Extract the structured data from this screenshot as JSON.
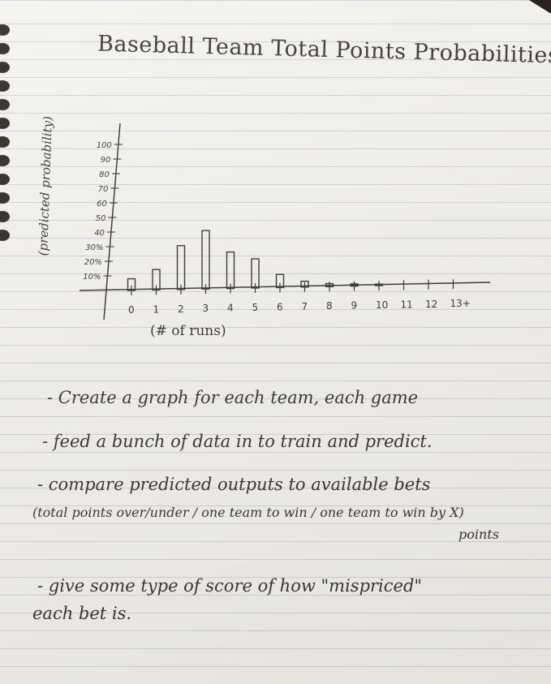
{
  "chart_data": {
    "type": "bar",
    "title": "Baseball Team Total Points Probabilities",
    "ylabel": "(predicted probability)",
    "xlabel": "(# of runs)",
    "categories": [
      "0",
      "1",
      "2",
      "3",
      "4",
      "5",
      "6",
      "7",
      "8",
      "9",
      "10",
      "11",
      "12",
      "13+"
    ],
    "values": [
      8,
      14,
      30,
      40,
      25,
      20,
      9,
      4,
      2,
      1.5,
      1,
      0,
      0,
      0
    ],
    "y_ticks": [
      "100",
      "90",
      "80",
      "70",
      "60",
      "50",
      "40",
      "30%",
      "20%",
      "10%"
    ],
    "ylim": [
      0,
      100
    ],
    "grid": false,
    "color": "#2a2624"
  },
  "notes": [
    "- Create a graph for each team, each game",
    "- feed a bunch of data in to train and predict.",
    "- compare predicted outputs to available bets",
    "(total points over/under / one team to win / one team to win by X)",
    "points",
    "- give some type of score of how \"mispriced\"",
    "each bet is."
  ]
}
